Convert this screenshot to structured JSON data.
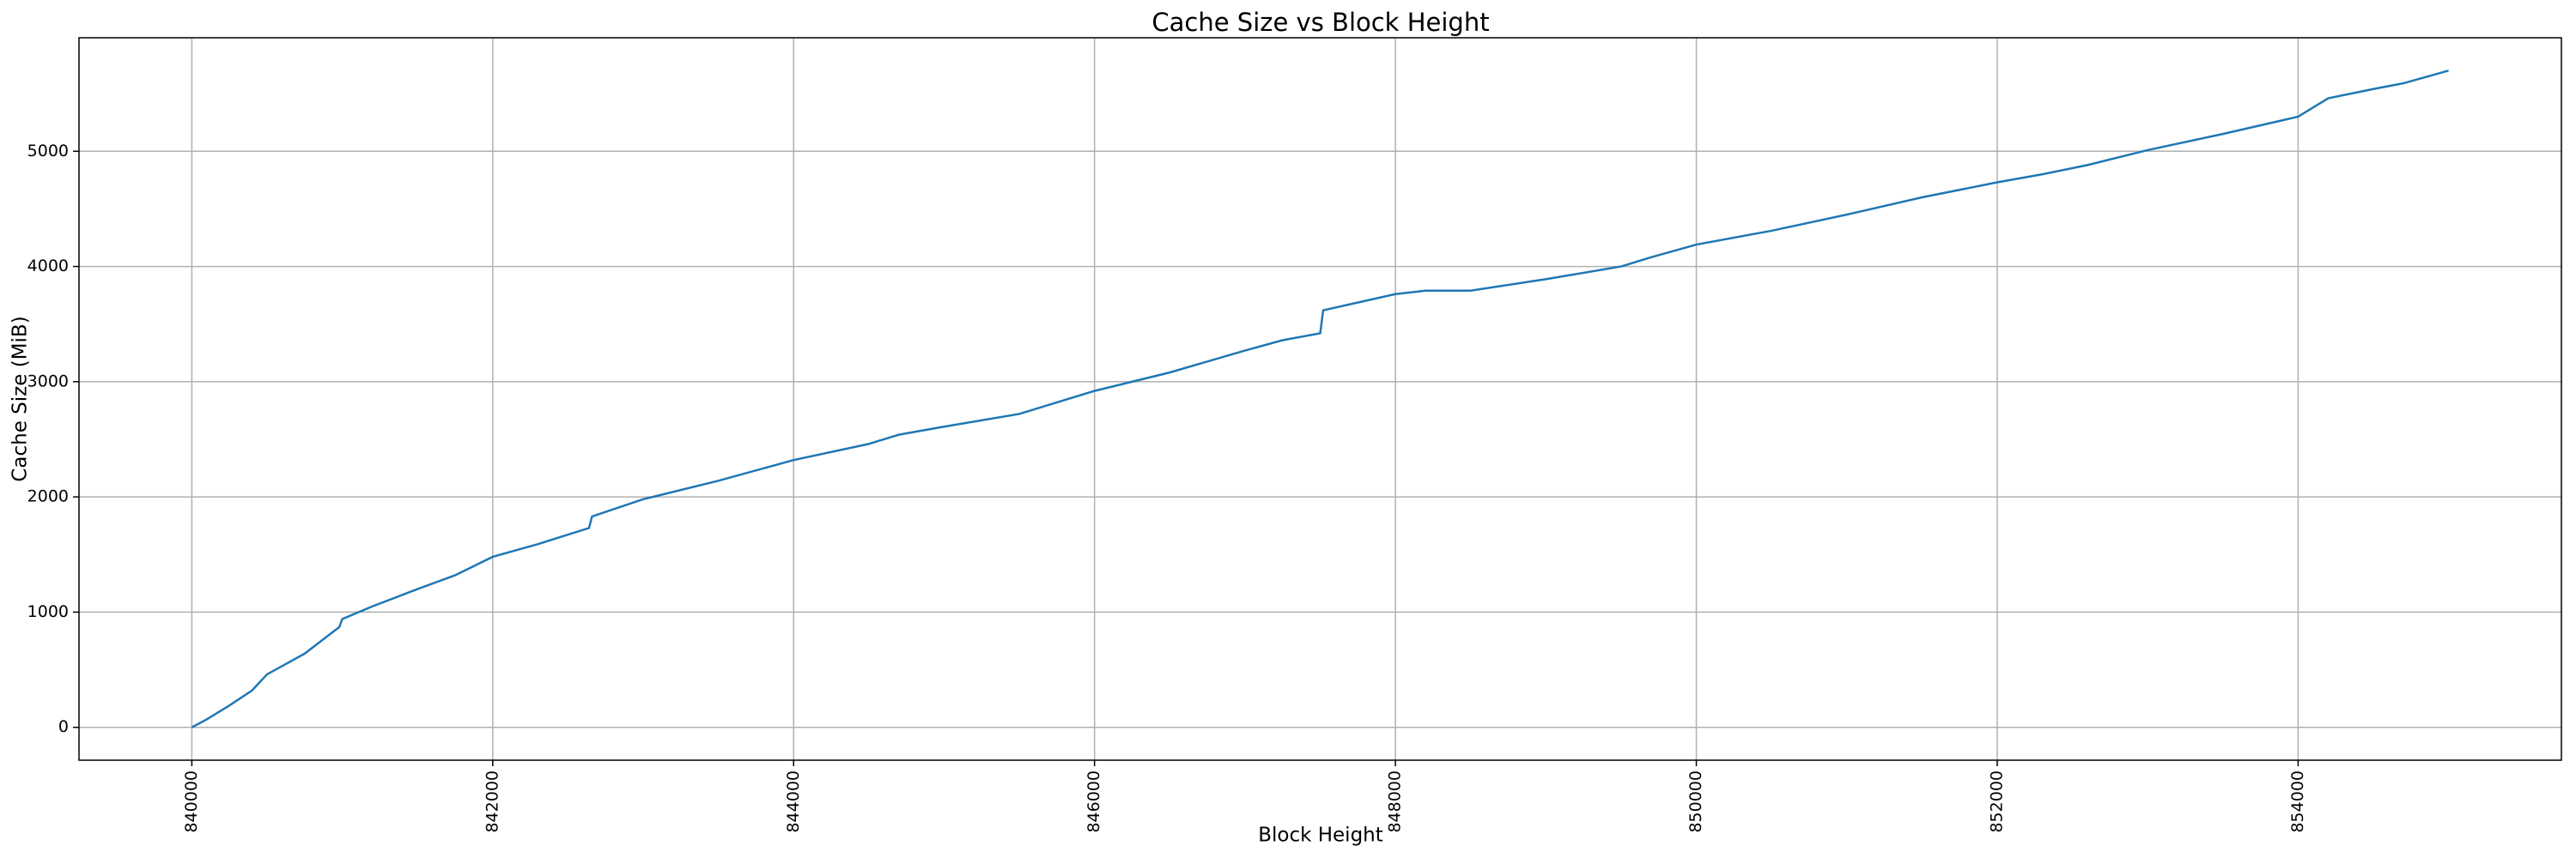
{
  "chart_data": {
    "type": "line",
    "title": "Cache Size vs Block Height",
    "x_label": "Block Height",
    "y_label": "Cache Size (MiB)",
    "x": [
      840000,
      840100,
      840250,
      840400,
      840500,
      840750,
      840980,
      841000,
      841200,
      841500,
      841750,
      842000,
      842300,
      842640,
      842660,
      843000,
      843500,
      844000,
      844500,
      844700,
      845000,
      845500,
      846000,
      846500,
      847000,
      847250,
      847500,
      847520,
      848000,
      848200,
      848500,
      849000,
      849500,
      849700,
      850000,
      850500,
      851000,
      851500,
      852000,
      852300,
      852600,
      853000,
      853500,
      854000,
      854200,
      854500,
      854700,
      855000
    ],
    "series": [
      {
        "name": "Cache Size",
        "color": "#1f77b4",
        "values": [
          0,
          70,
          190,
          320,
          460,
          640,
          870,
          940,
          1050,
          1200,
          1320,
          1480,
          1590,
          1730,
          1830,
          1980,
          2140,
          2320,
          2460,
          2540,
          2610,
          2720,
          2920,
          3080,
          3270,
          3360,
          3420,
          3620,
          3760,
          3790,
          3790,
          3890,
          4000,
          4080,
          4190,
          4310,
          4450,
          4600,
          4730,
          4800,
          4880,
          5010,
          5150,
          5300,
          5460,
          5540,
          5590,
          5700
        ]
      }
    ],
    "xlim": [
      839250,
      855750
    ],
    "xticks": [
      840000,
      842000,
      844000,
      846000,
      848000,
      850000,
      852000,
      854000
    ],
    "ylim": [
      -285,
      5985
    ],
    "yticks": [
      0,
      1000,
      2000,
      3000,
      4000,
      5000
    ],
    "grid": true
  }
}
